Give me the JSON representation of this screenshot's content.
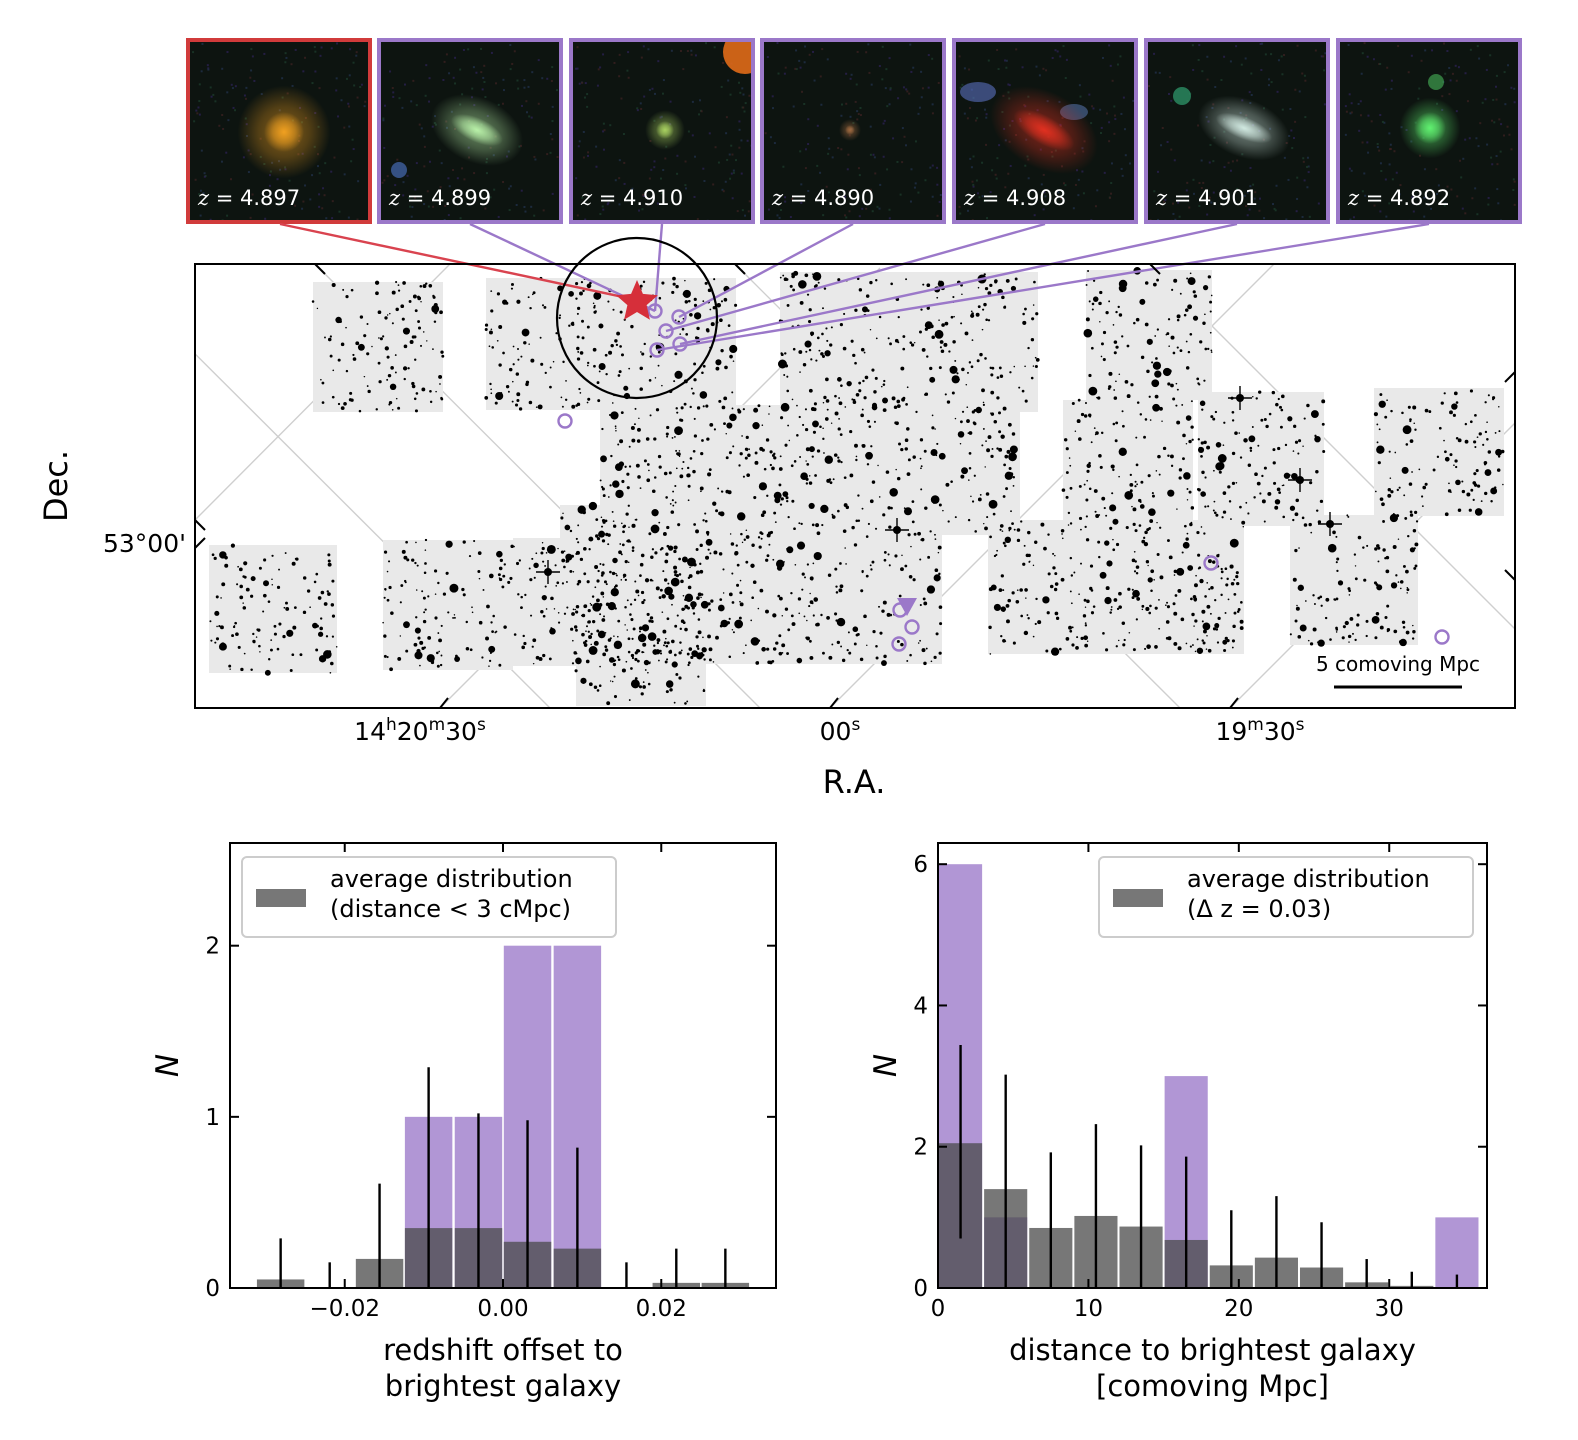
{
  "thumbnails": [
    {
      "z_label": "= 4.897",
      "role": "brightest",
      "border_color": "#d13b3b",
      "source_color": "#f0a020"
    },
    {
      "z_label": "= 4.899",
      "role": "member",
      "border_color": "#9b78c9",
      "source_color": "#b8f0a8"
    },
    {
      "z_label": "= 4.910",
      "role": "member",
      "border_color": "#9b78c9",
      "source_color": "#a8d060"
    },
    {
      "z_label": "= 4.890",
      "role": "member",
      "border_color": "#9b78c9",
      "source_color": "#a06a40"
    },
    {
      "z_label": "= 4.908",
      "role": "member",
      "border_color": "#9b78c9",
      "source_color": "#e03020"
    },
    {
      "z_label": "= 4.901",
      "role": "member",
      "border_color": "#9b78c9",
      "source_color": "#d0e8e0"
    },
    {
      "z_label": "= 4.892",
      "role": "member",
      "border_color": "#9b78c9",
      "source_color": "#60f070"
    }
  ],
  "z_symbol": "z",
  "map": {
    "xlabel": "R.A.",
    "ylabel": "Dec.",
    "xticks": [
      {
        "h": "14",
        "hs": "h",
        "m": "20",
        "ms": "m",
        "s": "30",
        "ss": "s"
      },
      {
        "h": "",
        "hs": "",
        "m": "",
        "ms": "",
        "s": "00",
        "ss": "s"
      },
      {
        "h": "",
        "hs": "",
        "m": "19",
        "ms": "m",
        "s": "30",
        "ss": "s"
      }
    ],
    "yticks": [
      "53°00'"
    ],
    "scalebar_label": "5 comoving Mpc",
    "brightest_color": "#d62f3a",
    "member_color": "#9b78c9"
  },
  "chart_data": [
    {
      "type": "bar",
      "title": "",
      "xlabel": "redshift offset to brightest galaxy",
      "xlabel_lines": [
        "redshift offset to",
        "brightest galaxy"
      ],
      "ylabel": "N",
      "xlim": [
        -0.0345,
        0.0345
      ],
      "ylim": [
        0,
        2.6
      ],
      "xticks": [
        -0.02,
        0.0,
        0.02
      ],
      "xtick_labels": [
        "−0.02",
        "0.00",
        "0.02"
      ],
      "yticks": [
        0,
        1,
        2
      ],
      "ytick_labels": [
        "0",
        "1",
        "2"
      ],
      "bin_width": 0.00625,
      "legend_placement": "top-left",
      "legend": [
        "average distribution",
        "(distance < 3 cMpc)"
      ],
      "colors": {
        "observed": "#9b78c9",
        "average": "#6b6b6b"
      },
      "series": [
        {
          "role": "observed",
          "x": [
            -0.0094,
            -0.0031,
            0.0031,
            0.0094
          ],
          "values": [
            1,
            1,
            2,
            2
          ]
        },
        {
          "role": "average",
          "x": [
            -0.0281,
            -0.0219,
            -0.0156,
            -0.0094,
            -0.0031,
            0.0031,
            0.0094,
            0.0156,
            0.0219,
            0.0281
          ],
          "values": [
            0.05,
            0.0,
            0.17,
            0.35,
            0.35,
            0.27,
            0.23,
            0.0,
            0.03,
            0.03
          ],
          "error_upper": [
            0.29,
            0.15,
            0.61,
            1.29,
            1.02,
            0.98,
            0.82,
            0.15,
            0.23,
            0.23
          ]
        }
      ]
    },
    {
      "type": "bar",
      "title": "",
      "xlabel": "distance to brightest galaxy [comoving Mpc]",
      "xlabel_lines": [
        "distance to brightest galaxy",
        "[comoving Mpc]"
      ],
      "ylabel": "N",
      "xlim": [
        0,
        36.5
      ],
      "ylim": [
        0,
        6.3
      ],
      "xticks": [
        0,
        10,
        20,
        30
      ],
      "xtick_labels": [
        "0",
        "10",
        "20",
        "30"
      ],
      "yticks": [
        0,
        2,
        4,
        6
      ],
      "ytick_labels": [
        "0",
        "2",
        "4",
        "6"
      ],
      "bin_width": 3.0,
      "legend_placement": "top-right",
      "legend": [
        "average distribution",
        "(Δ z = 0.03)"
      ],
      "colors": {
        "observed": "#9b78c9",
        "average": "#6b6b6b"
      },
      "series": [
        {
          "role": "observed",
          "x": [
            1.5,
            4.5,
            16.5,
            34.5
          ],
          "values": [
            6,
            1,
            3,
            1
          ]
        },
        {
          "role": "average",
          "x": [
            1.5,
            4.5,
            7.5,
            10.5,
            13.5,
            16.5,
            19.5,
            22.5,
            25.5,
            28.5,
            31.5,
            34.5
          ],
          "values": [
            2.05,
            1.4,
            0.85,
            1.02,
            0.87,
            0.68,
            0.32,
            0.43,
            0.29,
            0.08,
            0.03,
            0.0
          ],
          "error_lower": [
            0.7,
            0.0,
            0.0,
            0.0,
            0.0,
            0.0,
            0.0,
            0.0,
            0.0,
            0.0,
            0.0,
            0.0
          ],
          "error_upper": [
            3.44,
            3.02,
            1.92,
            2.32,
            2.02,
            1.86,
            1.1,
            1.3,
            0.93,
            0.41,
            0.23,
            0.19
          ]
        }
      ]
    }
  ]
}
